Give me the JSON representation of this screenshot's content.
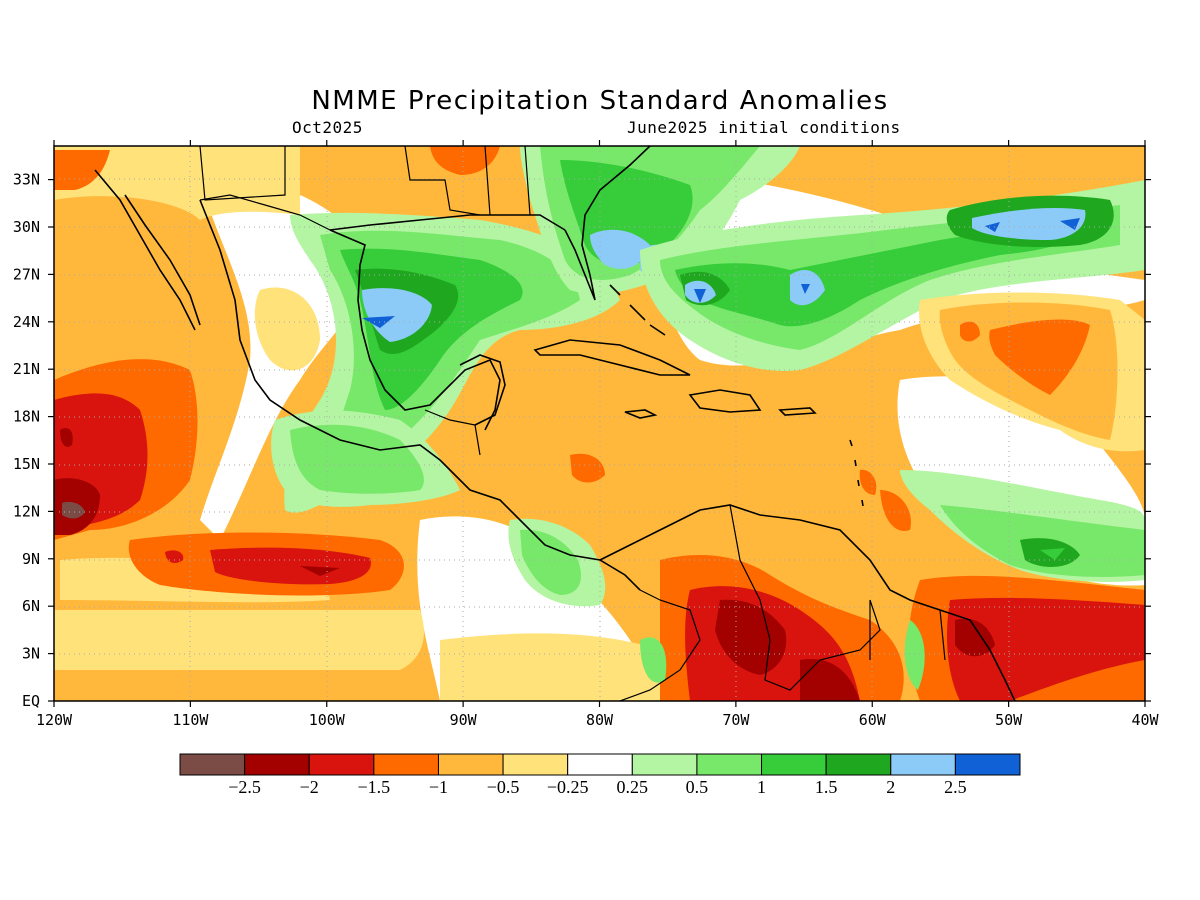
{
  "title": "NMME Precipitation Standard Anomalies",
  "subtitle_left": "Oct2025",
  "subtitle_right": "June2025 initial conditions",
  "lat_labels": [
    "33N",
    "30N",
    "27N",
    "24N",
    "21N",
    "18N",
    "15N",
    "12N",
    "9N",
    "6N",
    "3N",
    "EQ"
  ],
  "lon_labels": [
    "120W",
    "110W",
    "100W",
    "90W",
    "80W",
    "70W",
    "60W",
    "50W",
    "40W"
  ],
  "colorbar": {
    "colors": [
      "#7a4c45",
      "#a30000",
      "#d9140f",
      "#ff6a00",
      "#ffb83c",
      "#ffe27a",
      "#ffffff",
      "#b4f5a3",
      "#78e86a",
      "#36cc3a",
      "#1fa81f",
      "#8ccaf8",
      "#1060d6"
    ],
    "labels": [
      "−2.5",
      "−2",
      "−1.5",
      "−1",
      "−0.5",
      "−0.25",
      "0.25",
      "0.5",
      "1",
      "1.5",
      "2",
      "2.5"
    ]
  },
  "colors": {
    "background_anomaly": "#ffb83c",
    "frame": "#000000"
  }
}
